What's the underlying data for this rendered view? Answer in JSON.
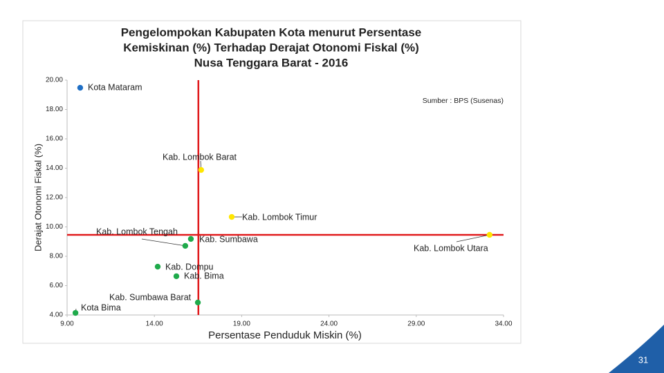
{
  "chart_data": {
    "type": "scatter",
    "title": [
      "Pengelompokan Kabupaten Kota menurut Persentase",
      "Kemiskinan (%)  Terhadap Derajat Otonomi Fiskal (%)",
      "Nusa Tenggara Barat - 2016"
    ],
    "source": "Sumber : BPS (Susenas)",
    "x_label": "Persentase Penduduk Miskin (%)",
    "y_label": "Derajat Otonomi Fiskal (%)",
    "labels": [
      "Kota Mataram",
      "Kab. Lombok Barat",
      "Kab. Lombok Timur",
      "Kab. Lombok Utara",
      "Kab. Lombok Tengah",
      "Kab. Sumbawa",
      "Kab. Dompu",
      "Kab. Bima",
      "Kab. Sumbawa Barat",
      "Kota Bima"
    ],
    "x": [
      9.75,
      16.68,
      18.43,
      33.2,
      15.77,
      16.09,
      14.19,
      15.26,
      16.49,
      9.48
    ],
    "y": [
      19.48,
      13.88,
      10.68,
      9.46,
      8.71,
      9.18,
      7.29,
      6.64,
      4.85,
      4.14
    ],
    "colors": [
      "#1f6fc5",
      "#ffe600",
      "#ffe600",
      "#ffe600",
      "#1faa4b",
      "#1faa4b",
      "#1faa4b",
      "#1faa4b",
      "#1faa4b",
      "#1faa4b"
    ],
    "ref_x": 16.52,
    "ref_y": 9.46,
    "ref_color": "#e0191b",
    "xlim": [
      9,
      34
    ],
    "ylim": [
      4,
      20
    ],
    "xticks": [
      {
        "value": 9,
        "label": "9.00"
      },
      {
        "value": 14,
        "label": "14.00"
      },
      {
        "value": 19,
        "label": "19.00"
      },
      {
        "value": 24,
        "label": "24.00"
      },
      {
        "value": 29,
        "label": "29.00"
      },
      {
        "value": 34,
        "label": "34.00"
      }
    ],
    "yticks": [
      {
        "value": 4,
        "label": "4.00"
      },
      {
        "value": 6,
        "label": "6.00"
      },
      {
        "value": 8,
        "label": "8.00"
      },
      {
        "value": 10,
        "label": "10.00"
      },
      {
        "value": 12,
        "label": "12.00"
      },
      {
        "value": 14,
        "label": "14.00"
      },
      {
        "value": 16,
        "label": "16.00"
      },
      {
        "value": 18,
        "label": "18.00"
      },
      {
        "value": 20,
        "label": "20.00"
      }
    ]
  },
  "page_number": "31"
}
